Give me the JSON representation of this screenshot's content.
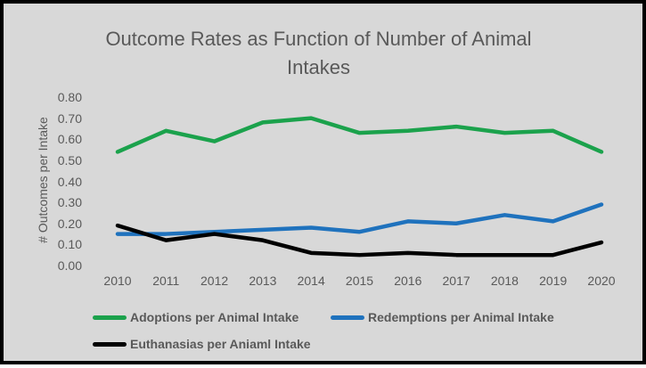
{
  "frame": {
    "background_color": "#d8d8d8",
    "border_color": "#000000"
  },
  "chart_data": {
    "type": "line",
    "title": "Outcome Rates as Function of Number of Animal Intakes",
    "title_lines": [
      "Outcome Rates as Function of Number of Animal",
      "Intakes"
    ],
    "ylabel": "# Outcomes per Intake",
    "xlabel": "",
    "x": [
      "2010",
      "2011",
      "2012",
      "2013",
      "2014",
      "2015",
      "2016",
      "2017",
      "2018",
      "2019",
      "2020"
    ],
    "yticks": [
      "0.80",
      "0.70",
      "0.60",
      "0.50",
      "0.40",
      "0.30",
      "0.20",
      "0.10",
      "0.00"
    ],
    "ylim": [
      0,
      0.8
    ],
    "grid": false,
    "axis_lines": false,
    "legend_position": "bottom-left",
    "text_color": "#595959",
    "series": [
      {
        "name": "Adoptions per Animal Intake",
        "color": "#1ba24c",
        "values": [
          0.54,
          0.64,
          0.59,
          0.68,
          0.7,
          0.63,
          0.64,
          0.66,
          0.63,
          0.64,
          0.54
        ]
      },
      {
        "name": "Redemptions per Animal Intake",
        "color": "#1f72bd",
        "values": [
          0.15,
          0.15,
          0.16,
          0.17,
          0.18,
          0.16,
          0.21,
          0.2,
          0.24,
          0.21,
          0.29
        ]
      },
      {
        "name": "Euthanasias per Aniaml Intake",
        "color": "#000000",
        "values": [
          0.19,
          0.12,
          0.15,
          0.12,
          0.06,
          0.05,
          0.06,
          0.05,
          0.05,
          0.05,
          0.11
        ]
      }
    ]
  }
}
